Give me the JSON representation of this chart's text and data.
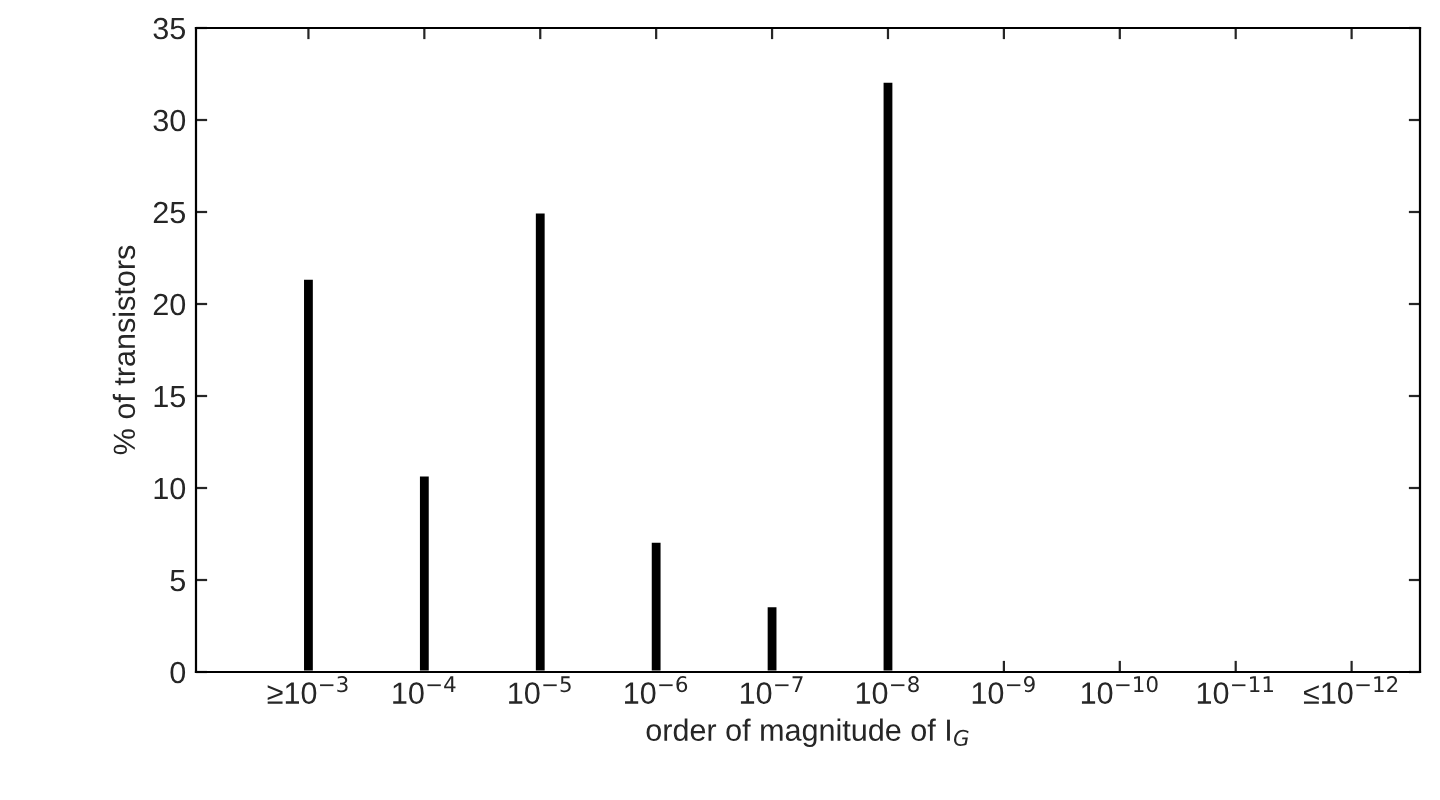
{
  "chart_data": {
    "type": "bar",
    "categories": [
      "≥10$^{−3}$",
      "10$^{−4}$",
      "10$^{−5}$",
      "10$^{−6}$",
      "10$^{−7}$",
      "10$^{−8}$",
      "10$^{−9}$",
      "10$^{−10}$",
      "10$^{−11}$",
      "≤10$^{−12}$"
    ],
    "values": [
      21.4,
      10.7,
      25.0,
      7.1,
      3.6,
      32.1,
      null,
      null,
      null,
      null
    ],
    "color": "#000000",
    "xlabel": "order of magnitude of I$_{G}$",
    "ylabel": "% of transistors",
    "ylim": [
      0,
      35
    ],
    "yticks": [
      0,
      5,
      10,
      15,
      20,
      25,
      30,
      35
    ],
    "grid": false
  }
}
